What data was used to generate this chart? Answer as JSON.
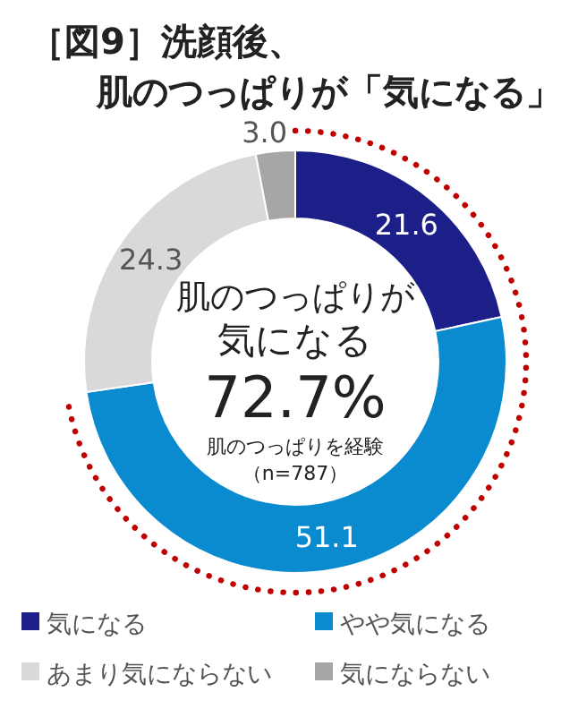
{
  "chart_data": {
    "type": "donut",
    "title": "［図9］洗顔後、",
    "subtitle": "肌のつっぱりが「気になる」",
    "categories": [
      "気になる",
      "やや気になる",
      "あまり気にならない",
      "気にならない"
    ],
    "values": [
      21.6,
      51.1,
      24.3,
      3.0
    ],
    "colors": [
      "#1c1f87",
      "#0a8acf",
      "#d9d9d9",
      "#a6a6a6"
    ],
    "value_labels": [
      "21.6",
      "51.1",
      "24.3",
      "3.0"
    ],
    "legend": "bottom",
    "annotations": [
      "肌のつっぱりが",
      "気になる",
      "72.7%",
      "肌のつっぱりを経験",
      "（n=787）"
    ]
  }
}
